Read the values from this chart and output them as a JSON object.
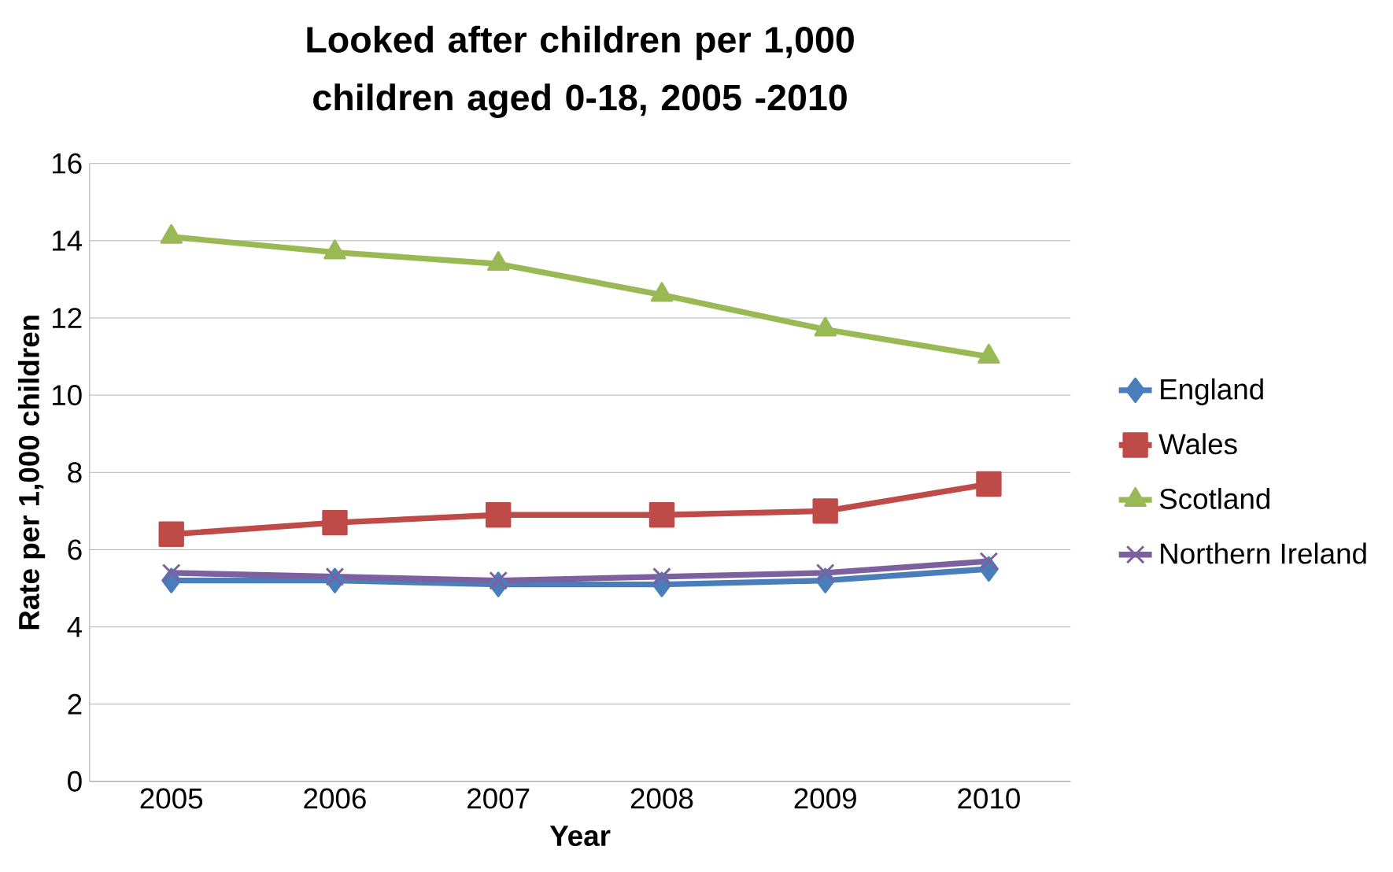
{
  "chart_data": {
    "type": "line",
    "title": "Looked after children per 1,000 children aged 0-18, 2005 -2010",
    "xlabel": "Year",
    "ylabel": "Rate per 1,000 children",
    "categories": [
      "2005",
      "2006",
      "2007",
      "2008",
      "2009",
      "2010"
    ],
    "series": [
      {
        "name": "England",
        "color": "#4a7ebb",
        "marker": "diamond",
        "values": [
          5.2,
          5.2,
          5.1,
          5.1,
          5.2,
          5.5
        ]
      },
      {
        "name": "Wales",
        "color": "#be4b48",
        "marker": "square",
        "values": [
          6.4,
          6.7,
          6.9,
          6.9,
          7.0,
          7.7
        ]
      },
      {
        "name": "Scotland",
        "color": "#98b954",
        "marker": "triangle",
        "values": [
          14.1,
          13.7,
          13.4,
          12.6,
          11.7,
          11.0
        ]
      },
      {
        "name": "Northern Ireland",
        "color": "#7d60a0",
        "marker": "cross",
        "values": [
          5.4,
          5.3,
          5.2,
          5.3,
          5.4,
          5.7
        ]
      }
    ],
    "ylim": [
      0,
      16
    ],
    "yticks": [
      0,
      2,
      4,
      6,
      8,
      10,
      12,
      14,
      16
    ],
    "grid": "y",
    "legend": "right",
    "line_style": "solid"
  }
}
